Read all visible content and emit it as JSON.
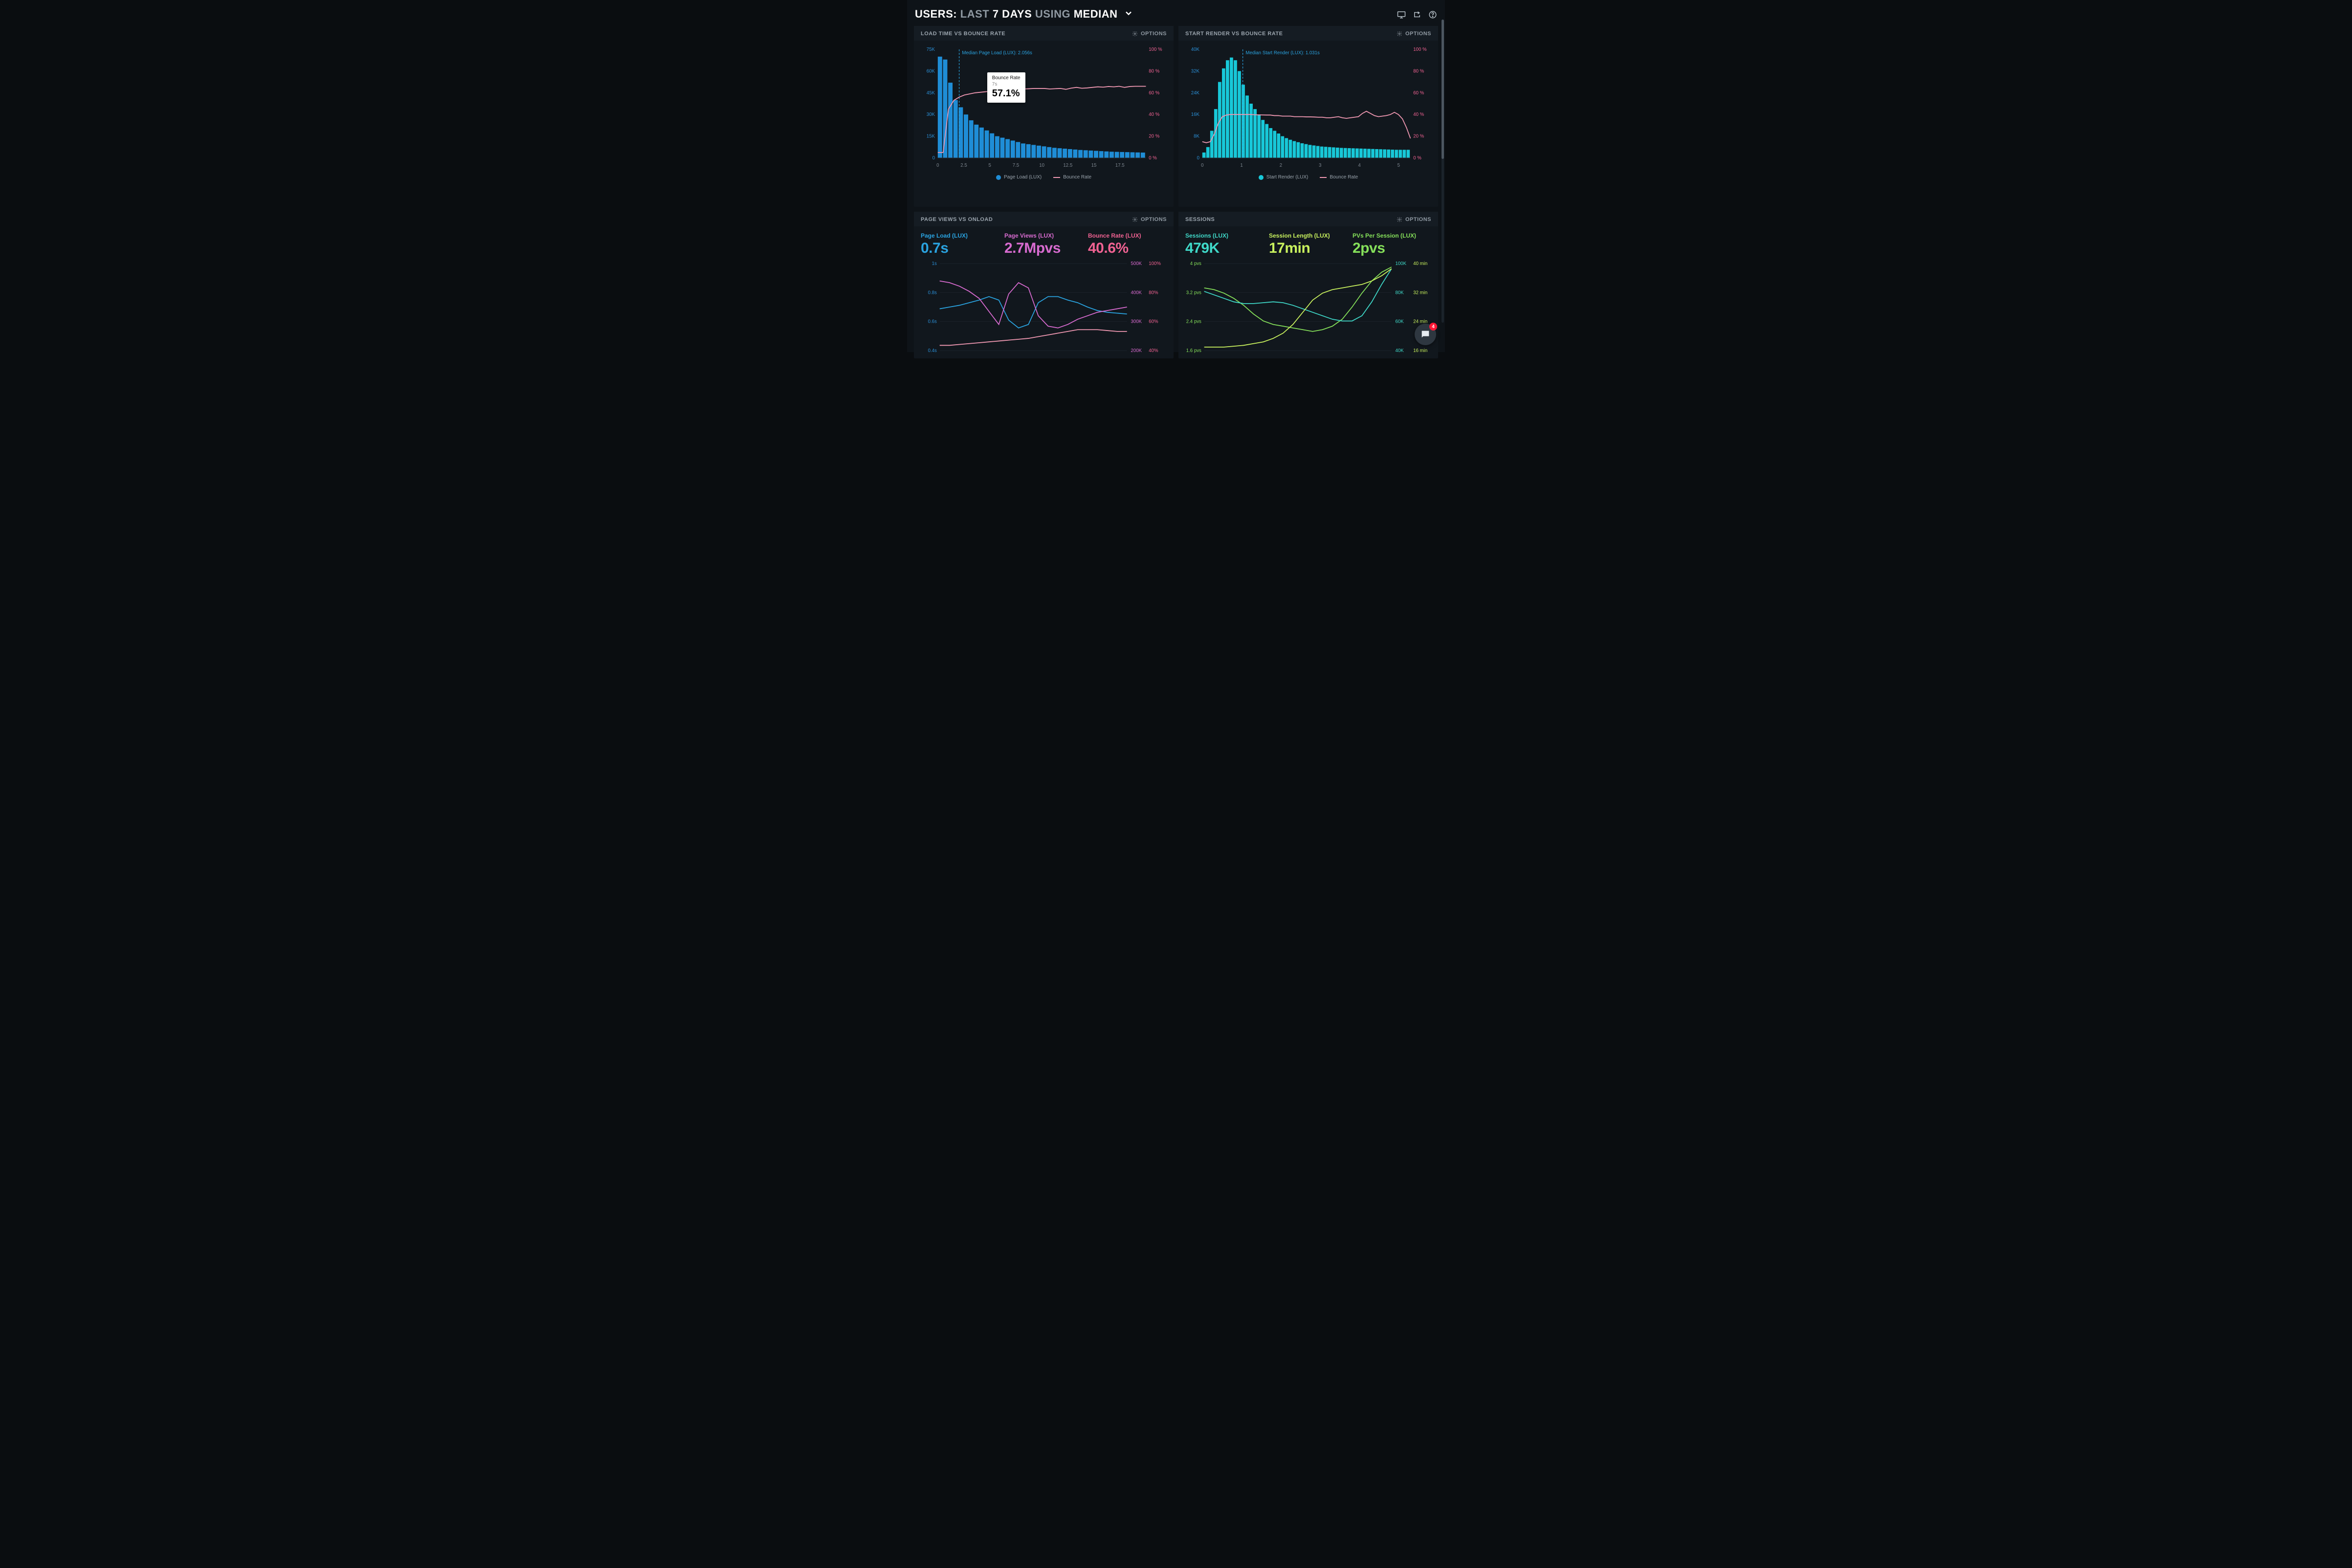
{
  "header": {
    "word1": "USERS:",
    "word2": "LAST",
    "word3": "7 DAYS",
    "word4": "USING",
    "word5": "MEDIAN",
    "icons": {
      "monitor": "monitor-icon",
      "share": "share-icon",
      "help": "help-icon"
    }
  },
  "colors": {
    "bg": "#0e1318",
    "panel": "#11171d",
    "panel_hdr": "#151c23",
    "blue_bar": "#1f8dd6",
    "cyan_bar": "#18c8d8",
    "pink_line": "#f098b2",
    "pink_axis": "#f06292",
    "blue_axis": "#2a8fd6",
    "magenta": "#d86bd0",
    "green": "#85e05a",
    "mint": "#7ff0c0",
    "lime": "#c9f25e",
    "text_dim": "#8f99a2"
  },
  "panels": {
    "loadtime": {
      "title": "LOAD TIME VS BOUNCE RATE",
      "options_label": "OPTIONS",
      "y_left": {
        "ticks": [
          "0",
          "15K",
          "30K",
          "45K",
          "60K",
          "75K"
        ],
        "max": 75
      },
      "y_right": {
        "ticks": [
          "0 %",
          "20 %",
          "40 %",
          "60 %",
          "80 %",
          "100 %"
        ],
        "max": 100
      },
      "x": {
        "ticks": [
          "0",
          "2.5",
          "5",
          "7.5",
          "10",
          "12.5",
          "15",
          "17.5"
        ],
        "max": 20
      },
      "median_label": "Median Page Load (LUX): 2.056s",
      "median_x": 2.056,
      "bar_color": "#1f8dd6",
      "line_color": "#f098b2",
      "bars": [
        70,
        68,
        52,
        40,
        35,
        30,
        26,
        23,
        21,
        19,
        17,
        15,
        14,
        13,
        12,
        11,
        10,
        9.5,
        9,
        8.5,
        8,
        7.5,
        7,
        6.7,
        6.4,
        6.1,
        5.8,
        5.5,
        5.3,
        5.1,
        4.9,
        4.7,
        4.5,
        4.3,
        4.2,
        4.1,
        4.0,
        3.9,
        3.8,
        3.7
      ],
      "line": [
        5,
        5,
        45,
        53,
        56,
        58,
        59,
        60,
        60.5,
        61,
        61.5,
        62,
        62.5,
        63,
        63,
        63.2,
        63.5,
        63.7,
        64,
        64,
        64,
        63.5,
        63.8,
        64,
        63.2,
        64.3,
        65,
        64.2,
        64.5,
        65,
        65.5,
        65.2,
        65.8,
        65.5,
        66,
        65,
        65.8,
        66,
        66,
        66
      ],
      "tooltip": {
        "label": "Bounce Rate",
        "sub": "7s",
        "value": "57.1%",
        "x_pct": 27,
        "y_pct": 22
      },
      "legend": {
        "a": "Page Load (LUX)",
        "b": "Bounce Rate"
      }
    },
    "startrender": {
      "title": "START RENDER VS BOUNCE RATE",
      "options_label": "OPTIONS",
      "y_left": {
        "ticks": [
          "0",
          "8K",
          "16K",
          "24K",
          "32K",
          "40K"
        ],
        "max": 40
      },
      "y_right": {
        "ticks": [
          "0 %",
          "20 %",
          "40 %",
          "60 %",
          "80 %",
          "100 %"
        ],
        "max": 100
      },
      "x": {
        "ticks": [
          "0",
          "1",
          "2",
          "3",
          "4",
          "5"
        ],
        "max": 5.3
      },
      "median_label": "Median Start Render (LUX): 1.031s",
      "median_x": 1.031,
      "bar_color": "#18c8d8",
      "line_color": "#f098b2",
      "bars": [
        2,
        4,
        10,
        18,
        28,
        33,
        36,
        37,
        36,
        32,
        27,
        23,
        20,
        18,
        16,
        14,
        12.5,
        11,
        10,
        9,
        8,
        7.3,
        6.7,
        6.2,
        5.8,
        5.4,
        5.1,
        4.8,
        4.6,
        4.4,
        4.2,
        4.1,
        4.0,
        3.9,
        3.8,
        3.7,
        3.65,
        3.6,
        3.55,
        3.5,
        3.45,
        3.4,
        3.35,
        3.3,
        3.25,
        3.2,
        3.15,
        3.1,
        3.05,
        3.0,
        3,
        3,
        3
      ],
      "line": [
        15,
        14,
        15,
        22,
        32,
        38,
        39.5,
        40,
        40,
        40,
        40,
        40,
        40,
        39.8,
        39.7,
        39.6,
        39.5,
        39.5,
        39,
        39,
        38.5,
        38.5,
        38.5,
        38,
        38,
        38,
        37.8,
        37.8,
        37.7,
        37.5,
        37.5,
        37,
        37,
        37.5,
        38,
        37,
        36.5,
        37,
        37.5,
        38,
        41,
        43,
        41,
        39,
        38,
        38.5,
        39,
        40,
        42,
        40,
        36,
        28,
        18
      ],
      "legend": {
        "a": "Start Render (LUX)",
        "b": "Bounce Rate"
      }
    },
    "pageviews": {
      "title": "PAGE VIEWS VS ONLOAD",
      "options_label": "OPTIONS",
      "metrics": [
        {
          "label": "Page Load (LUX)",
          "value": "0.7s",
          "color": "#2aa3e0"
        },
        {
          "label": "Page Views (LUX)",
          "value": "2.7Mpvs",
          "color": "#d86bd0"
        },
        {
          "label": "Bounce Rate (LUX)",
          "value": "40.6%",
          "color": "#f06292"
        }
      ],
      "y_left": {
        "ticks": [
          "0.4s",
          "0.6s",
          "0.8s",
          "1s"
        ],
        "color": "#2a8fd6"
      },
      "y_right_a": {
        "ticks": [
          "200K",
          "300K",
          "400K",
          "500K"
        ],
        "color": "#d86bd0"
      },
      "y_right_b": {
        "ticks": [
          "40%",
          "60%",
          "80%",
          "100%"
        ],
        "color": "#f06292"
      },
      "series": {
        "blue": {
          "color": "#2aa3e0",
          "pts": [
            48,
            50,
            52,
            55,
            58,
            62,
            58,
            35,
            26,
            30,
            55,
            62,
            62,
            58,
            55,
            50,
            46,
            44,
            43,
            42
          ]
        },
        "magenta": {
          "color": "#d86bd0",
          "pts": [
            80,
            78,
            74,
            68,
            60,
            45,
            30,
            65,
            78,
            72,
            40,
            28,
            26,
            30,
            36,
            40,
            44,
            46,
            48,
            50
          ]
        },
        "pink": {
          "color": "#f098b2",
          "pts": [
            6,
            6,
            7,
            8,
            9,
            10,
            11,
            12,
            13,
            14,
            16,
            18,
            20,
            22,
            24,
            24,
            24,
            23,
            22,
            22
          ]
        }
      }
    },
    "sessions": {
      "title": "SESSIONS",
      "options_label": "OPTIONS",
      "metrics": [
        {
          "label": "Sessions (LUX)",
          "value": "479K",
          "color": "#3fd8c8"
        },
        {
          "label": "Session Length (LUX)",
          "value": "17min",
          "color": "#c9f25e"
        },
        {
          "label": "PVs Per Session (LUX)",
          "value": "2pvs",
          "color": "#85e05a"
        }
      ],
      "y_left": {
        "ticks": [
          "1.6 pvs",
          "2.4 pvs",
          "3.2 pvs",
          "4 pvs"
        ],
        "color": "#85e05a"
      },
      "y_right_a": {
        "ticks": [
          "40K",
          "60K",
          "80K",
          "100K"
        ],
        "color": "#3fd8c8"
      },
      "y_right_b": {
        "ticks": [
          "16 min",
          "24 min",
          "32 min",
          "40 min"
        ],
        "color": "#c9f25e"
      },
      "series": {
        "green": {
          "color": "#85e05a",
          "pts": [
            72,
            70,
            66,
            60,
            52,
            42,
            34,
            30,
            28,
            26,
            24,
            22,
            24,
            28,
            36,
            50,
            66,
            80,
            90,
            96
          ]
        },
        "mint": {
          "color": "#3fd8c8",
          "pts": [
            68,
            64,
            60,
            56,
            54,
            54,
            55,
            56,
            55,
            52,
            48,
            44,
            40,
            36,
            34,
            34,
            40,
            56,
            76,
            94
          ]
        },
        "lime": {
          "color": "#c9f25e",
          "pts": [
            4,
            4,
            4,
            5,
            6,
            8,
            10,
            14,
            20,
            30,
            44,
            58,
            66,
            70,
            72,
            74,
            76,
            80,
            86,
            94
          ]
        }
      }
    }
  },
  "chat_badge": "4"
}
